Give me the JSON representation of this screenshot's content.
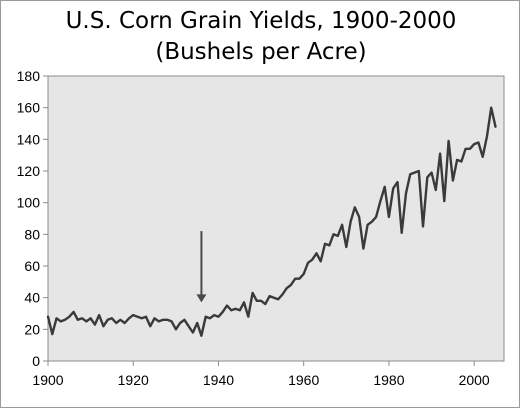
{
  "chart_data": {
    "type": "line",
    "title": "U.S. Corn Grain Yields, 1900-2000",
    "subtitle": "(Bushels per Acre)",
    "xlabel": "",
    "ylabel": "",
    "xlim": [
      1900,
      2007
    ],
    "ylim": [
      0,
      180
    ],
    "x_ticks": [
      1900,
      1920,
      1940,
      1960,
      1980,
      2000
    ],
    "y_ticks": [
      0,
      20,
      40,
      60,
      80,
      100,
      120,
      140,
      160,
      180
    ],
    "grid": false,
    "legend": "none",
    "plot_background": "#e6e6e6",
    "line_color": "#3a3a3a",
    "annotations": [
      {
        "type": "arrow",
        "x": 1936,
        "y_from": 82,
        "y_to": 37
      }
    ],
    "series": [
      {
        "x": [
          1900,
          1901,
          1902,
          1903,
          1904,
          1905,
          1906,
          1907,
          1908,
          1909,
          1910,
          1911,
          1912,
          1913,
          1914,
          1915,
          1916,
          1917,
          1918,
          1919,
          1920,
          1921,
          1922,
          1923,
          1924,
          1925,
          1926,
          1927,
          1928,
          1929,
          1930,
          1931,
          1932,
          1933,
          1934,
          1935,
          1936,
          1937,
          1938,
          1939,
          1940,
          1941,
          1942,
          1943,
          1944,
          1945,
          1946,
          1947,
          1948,
          1949,
          1950,
          1951,
          1952,
          1953,
          1954,
          1955,
          1956,
          1957,
          1958,
          1959,
          1960,
          1961,
          1962,
          1963,
          1964,
          1965,
          1966,
          1967,
          1968,
          1969,
          1970,
          1971,
          1972,
          1973,
          1974,
          1975,
          1976,
          1977,
          1978,
          1979,
          1980,
          1981,
          1982,
          1983,
          1984,
          1985,
          1986,
          1987,
          1988,
          1989,
          1990,
          1991,
          1992,
          1993,
          1994,
          1995,
          1996,
          1997,
          1998,
          1999,
          2000,
          2001,
          2002,
          2003,
          2004,
          2005
        ],
        "values": [
          28,
          17,
          27,
          25,
          26,
          28,
          31,
          26,
          27,
          25,
          27,
          23,
          29,
          22,
          26,
          27,
          24,
          26,
          24,
          27,
          29,
          28,
          27,
          28,
          22,
          27,
          25,
          26,
          26,
          25,
          20,
          24,
          26,
          22,
          18,
          24,
          16,
          28,
          27,
          29,
          28,
          31,
          35,
          32,
          33,
          32,
          37,
          28,
          43,
          38,
          38,
          36,
          41,
          40,
          39,
          42,
          46,
          48,
          52,
          52,
          55,
          62,
          64,
          68,
          63,
          74,
          73,
          80,
          79,
          86,
          72,
          88,
          97,
          91,
          71,
          86,
          88,
          91,
          101,
          110,
          91,
          109,
          113,
          81,
          106,
          118,
          119,
          120,
          85,
          116,
          119,
          108,
          131,
          101,
          139,
          114,
          127,
          126,
          134,
          134,
          137,
          138,
          129,
          142,
          160,
          148
        ]
      }
    ]
  }
}
